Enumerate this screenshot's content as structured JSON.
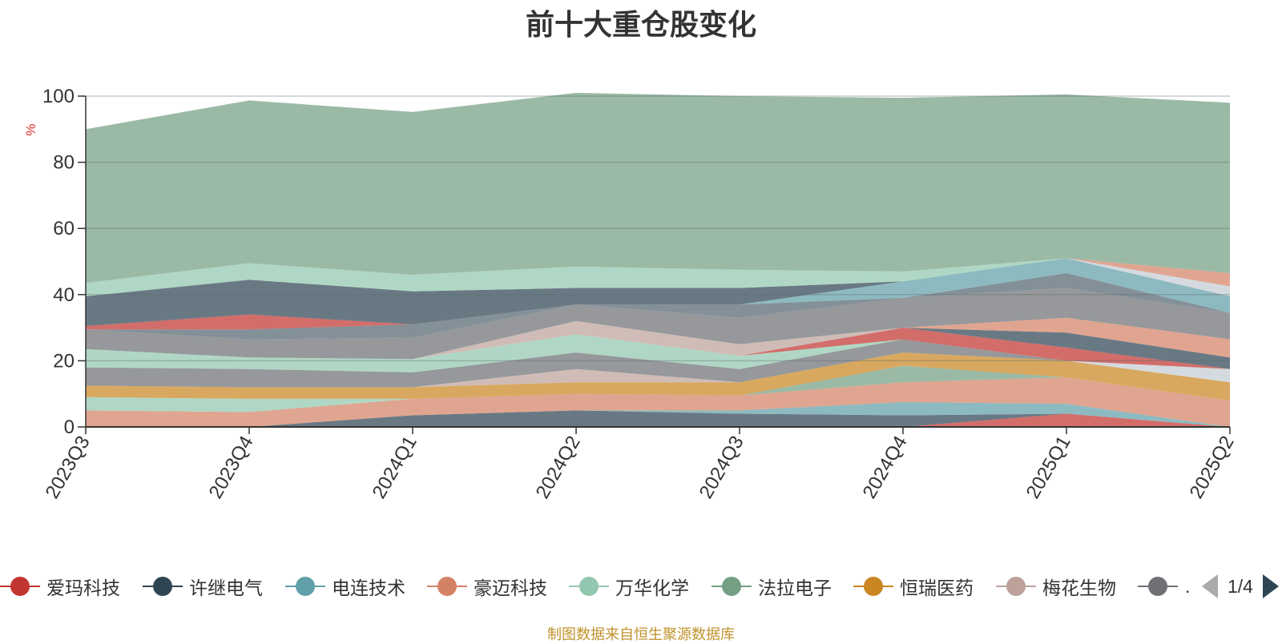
{
  "chart_data": {
    "type": "area",
    "title": "前十大重仓股变化",
    "ylabel": "%",
    "ylim": [
      0,
      100
    ],
    "yticks": [
      0,
      20,
      40,
      60,
      80,
      100
    ],
    "categories": [
      "2023Q3",
      "2023Q4",
      "2024Q1",
      "2024Q2",
      "2024Q3",
      "2024Q4",
      "2025Q1",
      "2025Q2"
    ],
    "grid": true,
    "stacked": true,
    "series": [
      {
        "name": "爱玛科技",
        "color": "#c23531",
        "values": [
          0,
          0,
          0,
          0,
          0,
          0,
          4,
          0
        ]
      },
      {
        "name": "许继电气",
        "color": "#2f4554",
        "values": [
          0,
          0,
          3.5,
          5,
          4,
          3.5,
          0,
          0
        ]
      },
      {
        "name": "电连技术",
        "color": "#61a0a8",
        "values": [
          0,
          0,
          0,
          0,
          1,
          4,
          3,
          0
        ]
      },
      {
        "name": "豪迈科技",
        "color": "#d48265",
        "values": [
          5,
          4.5,
          5,
          5,
          4.5,
          6,
          8,
          8
        ]
      },
      {
        "name": "万华化学",
        "color": "#91c7ae",
        "values": [
          4,
          4,
          0,
          0,
          0,
          0,
          0,
          0
        ]
      },
      {
        "name": "法拉电子",
        "color": "#749f83",
        "values": [
          0,
          0,
          0,
          0,
          0,
          5,
          0,
          0
        ]
      },
      {
        "name": "恒瑞医药",
        "color": "#ca8622",
        "values": [
          3.5,
          3.5,
          3.5,
          3.5,
          4,
          4,
          5,
          5.5
        ]
      },
      {
        "name": "梅花生物",
        "color": "#bda29a",
        "values": [
          0,
          0,
          0,
          4,
          0,
          0,
          0,
          0
        ]
      },
      {
        "name": "",
        "color": "#6e7074",
        "values": [
          5.5,
          5.5,
          4.5,
          5,
          4,
          4,
          0,
          0
        ]
      },
      {
        "name": "",
        "color": "#546570",
        "values": [
          0,
          0,
          0,
          0,
          0,
          0,
          0,
          0
        ]
      },
      {
        "name": "",
        "color": "#c4ccd3",
        "values": [
          0,
          0,
          0,
          0,
          0,
          0,
          0,
          4
        ]
      },
      {
        "name": "",
        "color": "#91c7ae",
        "values": [
          5.5,
          3.5,
          4,
          5.5,
          4,
          0,
          0,
          0
        ]
      },
      {
        "name": "",
        "color": "#61a0a8",
        "values": [
          0,
          0,
          0,
          0,
          0,
          0,
          0,
          0
        ]
      },
      {
        "name": "",
        "color": "#c23531",
        "values": [
          0,
          0,
          0,
          0,
          0,
          3.5,
          4,
          0
        ]
      },
      {
        "name": "",
        "color": "#2f4554",
        "values": [
          0,
          0,
          0,
          0,
          0,
          0,
          4.5,
          3.5
        ]
      },
      {
        "name": "",
        "color": "#d48265",
        "values": [
          0,
          0,
          0,
          0,
          0,
          0,
          4.5,
          5.5
        ]
      },
      {
        "name": "",
        "color": "#bda29a",
        "values": [
          0,
          0,
          0,
          4,
          3.5,
          0,
          0,
          0
        ]
      },
      {
        "name": "",
        "color": "#6e7074",
        "values": [
          6,
          5.5,
          6.5,
          5,
          8,
          9,
          9,
          8
        ]
      },
      {
        "name": "",
        "color": "#546570",
        "values": [
          0,
          3,
          4,
          0,
          4,
          0,
          4.5,
          0
        ]
      },
      {
        "name": "",
        "color": "#c23531",
        "values": [
          1,
          4.5,
          0,
          0,
          0,
          0,
          0,
          0
        ]
      },
      {
        "name": "",
        "color": "#61a0a8",
        "values": [
          0,
          0,
          0,
          0,
          0,
          5,
          4.5,
          5
        ]
      },
      {
        "name": "",
        "color": "#2f4554",
        "values": [
          9,
          10.5,
          10,
          5,
          5,
          0,
          0,
          0
        ]
      },
      {
        "name": "",
        "color": "#c4ccd3",
        "values": [
          0,
          0,
          0,
          0,
          0,
          0,
          0,
          3
        ]
      },
      {
        "name": "",
        "color": "#d48265",
        "values": [
          0,
          0,
          0,
          0,
          0,
          0,
          0,
          4
        ]
      },
      {
        "name": "",
        "color": "#91c7ae",
        "values": [
          4,
          5,
          5,
          6.5,
          5.5,
          3,
          0,
          0
        ]
      },
      {
        "name": "",
        "color": "#749f83",
        "values": [
          46.5,
          49.2,
          49.2,
          52.5,
          52.5,
          52.5,
          49.5,
          51.5
        ]
      }
    ]
  },
  "legend": {
    "items": [
      {
        "label": "爱玛科技",
        "color": "#c23531"
      },
      {
        "label": "许继电气",
        "color": "#2f4554"
      },
      {
        "label": "电连技术",
        "color": "#61a0a8"
      },
      {
        "label": "豪迈科技",
        "color": "#d48265"
      },
      {
        "label": "万华化学",
        "color": "#91c7ae"
      },
      {
        "label": "法拉电子",
        "color": "#749f83"
      },
      {
        "label": "恒瑞医药",
        "color": "#ca8622"
      },
      {
        "label": "梅花生物",
        "color": "#bda29a"
      },
      {
        "label": "…",
        "color": "#6e7074"
      }
    ],
    "page_indicator": "1/4"
  },
  "source_note": "制图数据来自恒生聚源数据库"
}
